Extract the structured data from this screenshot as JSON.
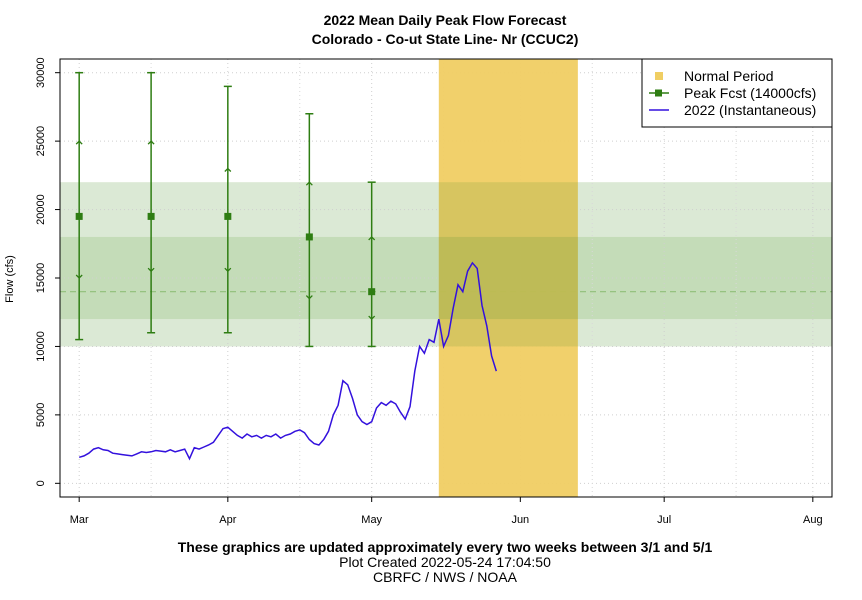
{
  "chart_data": {
    "type": "line",
    "title": "2022 Mean Daily Peak Flow Forecast",
    "subtitle": "Colorado - Co-ut State Line- Nr (CCUC2)",
    "xlabel": "",
    "ylabel": "Flow (cfs)",
    "x_range": [
      "2022-02-25",
      "2022-08-05"
    ],
    "ylim": [
      -1000,
      31000
    ],
    "x_ticks": [
      {
        "date": "2022-03-01",
        "label": "Mar"
      },
      {
        "date": "2022-04-01",
        "label": "Apr"
      },
      {
        "date": "2022-05-01",
        "label": "May"
      },
      {
        "date": "2022-06-01",
        "label": "Jun"
      },
      {
        "date": "2022-07-01",
        "label": "Jul"
      },
      {
        "date": "2022-08-01",
        "label": "Aug"
      }
    ],
    "y_ticks": [
      0,
      5000,
      10000,
      15000,
      20000,
      25000,
      30000
    ],
    "grid": true,
    "legend_position": "top-right",
    "bands": [
      {
        "y0": 10000,
        "y1": 22000,
        "color": "#dbe9d5"
      },
      {
        "y0": 12000,
        "y1": 18000,
        "color": "#c4dcb8"
      }
    ],
    "normal_peak_line": 14000,
    "normal_period": {
      "start": "2022-05-15",
      "end": "2022-06-13",
      "color": "#f0ce63",
      "label": "Normal Period"
    },
    "forecasts": {
      "label": "Peak Fcst (14000cfs)",
      "color": "#2e7d12",
      "points": [
        {
          "date": "2022-03-01",
          "median": 19500,
          "p10": 10500,
          "p25": 15000,
          "p75": 25000,
          "p90": 30000
        },
        {
          "date": "2022-03-16",
          "median": 19500,
          "p10": 11000,
          "p25": 15500,
          "p75": 25000,
          "p90": 30000
        },
        {
          "date": "2022-04-01",
          "median": 19500,
          "p10": 11000,
          "p25": 15500,
          "p75": 23000,
          "p90": 29000
        },
        {
          "date": "2022-04-18",
          "median": 18000,
          "p10": 10000,
          "p25": 13500,
          "p75": 22000,
          "p90": 27000
        },
        {
          "date": "2022-05-01",
          "median": 14000,
          "p10": 10000,
          "p25": 12000,
          "p75": 18000,
          "p90": 22000
        }
      ]
    },
    "series": [
      {
        "name": "2022  (Instantaneous)",
        "color": "#3311dd",
        "points": [
          [
            "2022-03-01",
            1900
          ],
          [
            "2022-03-02",
            2000
          ],
          [
            "2022-03-03",
            2200
          ],
          [
            "2022-03-04",
            2500
          ],
          [
            "2022-03-05",
            2600
          ],
          [
            "2022-03-06",
            2450
          ],
          [
            "2022-03-07",
            2400
          ],
          [
            "2022-03-08",
            2200
          ],
          [
            "2022-03-09",
            2150
          ],
          [
            "2022-03-10",
            2100
          ],
          [
            "2022-03-11",
            2050
          ],
          [
            "2022-03-12",
            2000
          ],
          [
            "2022-03-13",
            2150
          ],
          [
            "2022-03-14",
            2300
          ],
          [
            "2022-03-15",
            2250
          ],
          [
            "2022-03-16",
            2300
          ],
          [
            "2022-03-17",
            2400
          ],
          [
            "2022-03-18",
            2350
          ],
          [
            "2022-03-19",
            2300
          ],
          [
            "2022-03-20",
            2450
          ],
          [
            "2022-03-21",
            2300
          ],
          [
            "2022-03-22",
            2400
          ],
          [
            "2022-03-23",
            2500
          ],
          [
            "2022-03-24",
            1800
          ],
          [
            "2022-03-25",
            2600
          ],
          [
            "2022-03-26",
            2500
          ],
          [
            "2022-03-27",
            2650
          ],
          [
            "2022-03-28",
            2800
          ],
          [
            "2022-03-29",
            3000
          ],
          [
            "2022-03-30",
            3500
          ],
          [
            "2022-03-31",
            4000
          ],
          [
            "2022-04-01",
            4100
          ],
          [
            "2022-04-02",
            3800
          ],
          [
            "2022-04-03",
            3500
          ],
          [
            "2022-04-04",
            3300
          ],
          [
            "2022-04-05",
            3600
          ],
          [
            "2022-04-06",
            3400
          ],
          [
            "2022-04-07",
            3500
          ],
          [
            "2022-04-08",
            3300
          ],
          [
            "2022-04-09",
            3500
          ],
          [
            "2022-04-10",
            3400
          ],
          [
            "2022-04-11",
            3600
          ],
          [
            "2022-04-12",
            3300
          ],
          [
            "2022-04-13",
            3500
          ],
          [
            "2022-04-14",
            3600
          ],
          [
            "2022-04-15",
            3800
          ],
          [
            "2022-04-16",
            3900
          ],
          [
            "2022-04-17",
            3700
          ],
          [
            "2022-04-18",
            3200
          ],
          [
            "2022-04-19",
            2900
          ],
          [
            "2022-04-20",
            2800
          ],
          [
            "2022-04-21",
            3200
          ],
          [
            "2022-04-22",
            3800
          ],
          [
            "2022-04-23",
            5000
          ],
          [
            "2022-04-24",
            5700
          ],
          [
            "2022-04-25",
            7500
          ],
          [
            "2022-04-26",
            7200
          ],
          [
            "2022-04-27",
            6200
          ],
          [
            "2022-04-28",
            5000
          ],
          [
            "2022-04-29",
            4500
          ],
          [
            "2022-04-30",
            4300
          ],
          [
            "2022-05-01",
            4500
          ],
          [
            "2022-05-02",
            5500
          ],
          [
            "2022-05-03",
            5900
          ],
          [
            "2022-05-04",
            5700
          ],
          [
            "2022-05-05",
            6000
          ],
          [
            "2022-05-06",
            5800
          ],
          [
            "2022-05-07",
            5200
          ],
          [
            "2022-05-08",
            4700
          ],
          [
            "2022-05-09",
            5600
          ],
          [
            "2022-05-10",
            8200
          ],
          [
            "2022-05-11",
            10000
          ],
          [
            "2022-05-12",
            9500
          ],
          [
            "2022-05-13",
            10500
          ],
          [
            "2022-05-14",
            10300
          ],
          [
            "2022-05-15",
            12000
          ],
          [
            "2022-05-16",
            10000
          ],
          [
            "2022-05-17",
            10800
          ],
          [
            "2022-05-18",
            12800
          ],
          [
            "2022-05-19",
            14500
          ],
          [
            "2022-05-20",
            14000
          ],
          [
            "2022-05-21",
            15500
          ],
          [
            "2022-05-22",
            16100
          ],
          [
            "2022-05-23",
            15700
          ],
          [
            "2022-05-24",
            13000
          ],
          [
            "2022-05-25",
            11500
          ],
          [
            "2022-05-26",
            9300
          ],
          [
            "2022-05-27",
            8200
          ]
        ]
      }
    ]
  },
  "footer": {
    "line1": "These graphics are updated approximately every two weeks between 3/1 and 5/1",
    "line2": "Plot Created 2022-05-24 17:04:50",
    "line3": "CBRFC / NWS / NOAA"
  }
}
